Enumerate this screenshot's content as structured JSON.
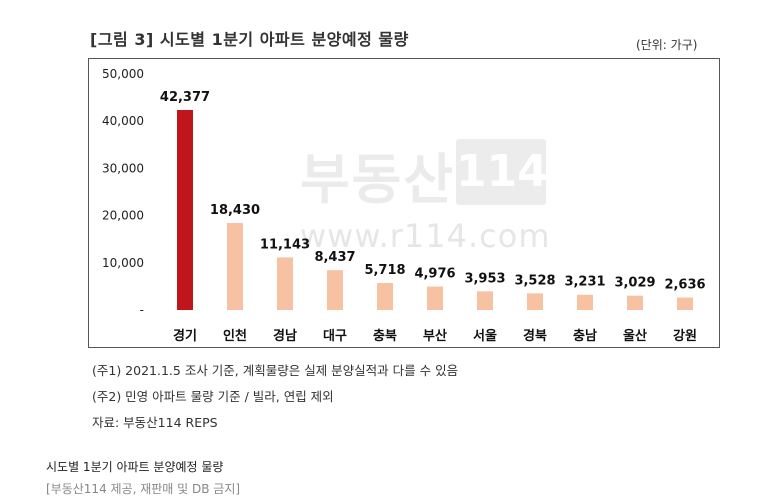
{
  "header": {
    "title": "[그림 3]  시도별 1분기 아파트 분양예정 물량",
    "unit": "(단위: 가구)"
  },
  "watermark": {
    "brand": "부동산",
    "number": "114",
    "url": "www.r114.com"
  },
  "chart_data": {
    "type": "bar",
    "categories": [
      "경기",
      "인천",
      "경남",
      "대구",
      "충북",
      "부산",
      "서울",
      "경북",
      "충남",
      "울산",
      "강원"
    ],
    "values": [
      42377,
      18430,
      11143,
      8437,
      5718,
      4976,
      3953,
      3528,
      3231,
      3029,
      2636
    ],
    "value_labels": [
      "42,377",
      "18,430",
      "11,143",
      "8,437",
      "5,718",
      "4,976",
      "3,953",
      "3,528",
      "3,231",
      "3,029",
      "2,636"
    ],
    "y_ticks": [
      0,
      10000,
      20000,
      30000,
      40000,
      50000
    ],
    "y_tick_labels": [
      "-",
      "10,000",
      "20,000",
      "30,000",
      "40,000",
      "50,000"
    ],
    "ylim": [
      0,
      50000
    ],
    "grid": false,
    "highlight_color": "#c0151b",
    "bar_color": "#f6c2a2"
  },
  "notes": [
    "(주1) 2021.1.5 조사 기준, 계획물량은 실제 분양실적과 다를 수 있음",
    "(주2) 민영 아파트 물량 기준 / 빌라, 연립 제외",
    "자료: 부동산114 REPS"
  ],
  "caption": "시도별 1분기 아파트 분양예정 물량",
  "credit": "[부동산114 제공, 재판매 및 DB 금지]"
}
